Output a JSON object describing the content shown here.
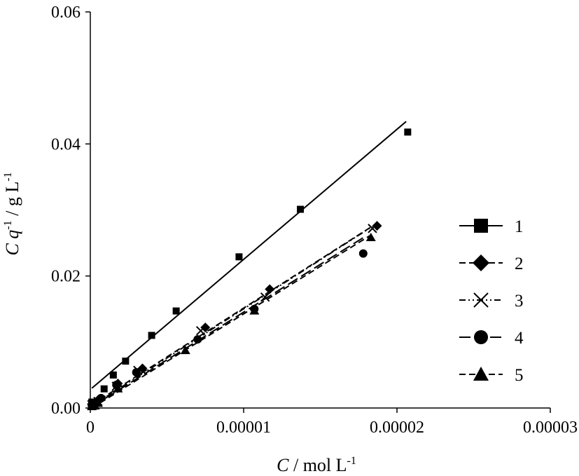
{
  "chart_data": {
    "type": "scatter",
    "xlabel": {
      "var": "C",
      "rest": " / mol L",
      "sup": "-1"
    },
    "ylabel": {
      "var": "C",
      "mid": " q",
      "sup1": "-1",
      "rest": " / g L",
      "sup2": "-1"
    },
    "xlim": [
      0,
      3e-05
    ],
    "ylim": [
      0,
      0.06
    ],
    "x_ticks": [
      {
        "value": 0,
        "label": "0"
      },
      {
        "value": 1e-05,
        "label": "0.00001"
      },
      {
        "value": 2e-05,
        "label": "0.00002"
      },
      {
        "value": 3e-05,
        "label": "0.00003"
      }
    ],
    "y_ticks": [
      {
        "value": 0,
        "label": "0.00"
      },
      {
        "value": 0.02,
        "label": "0.02"
      },
      {
        "value": 0.04,
        "label": "0.04"
      },
      {
        "value": 0.06,
        "label": "0.06"
      }
    ],
    "grid": false,
    "legend_position": "right",
    "series": [
      {
        "name": "1",
        "marker": "square",
        "line": "solid",
        "points": [
          [
            1e-07,
            0.0009
          ],
          [
            9e-07,
            0.0029
          ],
          [
            1.5e-06,
            0.005
          ],
          [
            2.3e-06,
            0.0071
          ],
          [
            4e-06,
            0.011
          ],
          [
            5.6e-06,
            0.0147
          ],
          [
            9.7e-06,
            0.0229
          ],
          [
            1.37e-05,
            0.0301
          ],
          [
            2.07e-05,
            0.0418
          ]
        ],
        "fit": [
          [
            1e-07,
            0.003
          ],
          [
            2.06e-05,
            0.0434
          ]
        ]
      },
      {
        "name": "2",
        "marker": "diamond",
        "line": "dash",
        "points": [
          [
            1e-07,
            0.0006
          ],
          [
            5e-07,
            0.0012
          ],
          [
            1.8e-06,
            0.0037
          ],
          [
            3.4e-06,
            0.006
          ],
          [
            7.5e-06,
            0.0122
          ],
          [
            1.17e-05,
            0.018
          ],
          [
            1.87e-05,
            0.0276
          ]
        ],
        "fit": [
          [
            1e-07,
            0.0005
          ],
          [
            1.87e-05,
            0.028
          ]
        ]
      },
      {
        "name": "3",
        "marker": "x",
        "line": "dashdotdot",
        "points": [
          [
            1e-07,
            0.0005
          ],
          [
            5e-07,
            0.001
          ],
          [
            1.7e-06,
            0.0033
          ],
          [
            3.1e-06,
            0.0057
          ],
          [
            7.2e-06,
            0.0117
          ],
          [
            1.14e-05,
            0.0168
          ],
          [
            1.84e-05,
            0.0272
          ]
        ],
        "fit": [
          [
            1e-07,
            0.0003
          ],
          [
            1.84e-05,
            0.0275
          ]
        ]
      },
      {
        "name": "4",
        "marker": "circle",
        "line": "longdash",
        "points": [
          [
            1e-07,
            0.0004
          ],
          [
            7e-07,
            0.0015
          ],
          [
            1.7e-06,
            0.0035
          ],
          [
            3e-06,
            0.0054
          ],
          [
            7e-06,
            0.0104
          ],
          [
            1.07e-05,
            0.015
          ],
          [
            1.78e-05,
            0.0234
          ]
        ],
        "fit": [
          [
            1e-07,
            0.0002
          ],
          [
            1.78e-05,
            0.0258
          ]
        ]
      },
      {
        "name": "5",
        "marker": "triangle",
        "line": "dash",
        "points": [
          [
            1e-07,
            0.0002
          ],
          [
            3e-07,
            0.0003
          ],
          [
            5e-07,
            0.0007
          ],
          [
            1.8e-06,
            0.0029
          ],
          [
            6.2e-06,
            0.0087
          ],
          [
            1.07e-05,
            0.0147
          ],
          [
            1.83e-05,
            0.0258
          ]
        ],
        "fit": [
          [
            1e-07,
            0.0
          ],
          [
            1.83e-05,
            0.0262
          ]
        ]
      }
    ]
  }
}
